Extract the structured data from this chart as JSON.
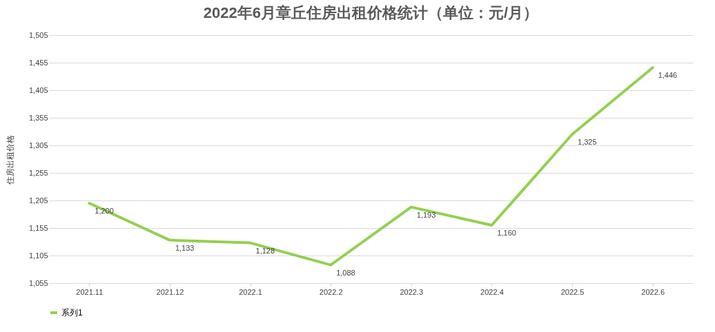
{
  "chart_data": {
    "type": "line",
    "title": "2022年6月章丘住房出租价格统计（单位：元/月）",
    "ylabel": "住房出租价格",
    "categories": [
      "2021.11",
      "2021.12",
      "2022.1",
      "2022.2",
      "2022.3",
      "2022.4",
      "2022.5",
      "2022.6"
    ],
    "series": [
      {
        "name": "系列1",
        "color": "#92d050",
        "values": [
          1200,
          1133,
          1128,
          1088,
          1193,
          1160,
          1325,
          1446
        ],
        "value_labels": [
          "1,200",
          "1,133",
          "1,128",
          "1,088",
          "1,193",
          "1,160",
          "1,325",
          "1,446"
        ]
      }
    ],
    "ylim": [
      1055,
      1505
    ],
    "yticks": [
      {
        "value": 1055,
        "label": "1,055"
      },
      {
        "value": 1105,
        "label": "1,105"
      },
      {
        "value": 1155,
        "label": "1,155"
      },
      {
        "value": 1205,
        "label": "1,205"
      },
      {
        "value": 1255,
        "label": "1,255"
      },
      {
        "value": 1305,
        "label": "1,305"
      },
      {
        "value": 1355,
        "label": "1,355"
      },
      {
        "value": 1405,
        "label": "1,405"
      },
      {
        "value": 1455,
        "label": "1,455"
      },
      {
        "value": 1505,
        "label": "1,505"
      }
    ],
    "grid": "y",
    "legend": "bottom",
    "line_style": "solid"
  }
}
